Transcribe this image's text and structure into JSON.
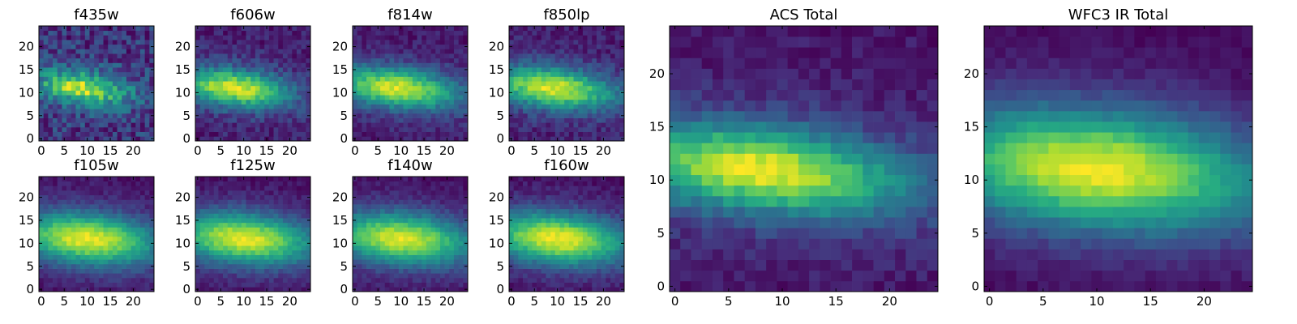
{
  "chart_data": [
    {
      "type": "heatmap",
      "title": "f435w",
      "xlabel": "",
      "ylabel": "",
      "xlim": [
        0,
        25
      ],
      "ylim": [
        0,
        25
      ],
      "xticks": [
        0,
        5,
        10,
        15,
        20
      ],
      "yticks": [
        0,
        5,
        10,
        15,
        20
      ],
      "grid": false,
      "colormap": "viridis",
      "peak_center": [
        9,
        11
      ],
      "spread": [
        5,
        2.2
      ],
      "tilt": -0.12,
      "noise": 0.42
    },
    {
      "type": "heatmap",
      "title": "f606w",
      "xlabel": "",
      "ylabel": "",
      "xlim": [
        0,
        25
      ],
      "ylim": [
        0,
        25
      ],
      "xticks": [
        0,
        5,
        10,
        15,
        20
      ],
      "yticks": [
        0,
        5,
        10,
        15,
        20
      ],
      "grid": false,
      "colormap": "viridis",
      "peak_center": [
        8,
        11
      ],
      "spread": [
        6,
        2.6
      ],
      "tilt": -0.1,
      "noise": 0.22
    },
    {
      "type": "heatmap",
      "title": "f814w",
      "xlabel": "",
      "ylabel": "",
      "xlim": [
        0,
        25
      ],
      "ylim": [
        0,
        25
      ],
      "xticks": [
        0,
        5,
        10,
        15,
        20
      ],
      "yticks": [
        0,
        5,
        10,
        15,
        20
      ],
      "grid": false,
      "colormap": "viridis",
      "peak_center": [
        9,
        11
      ],
      "spread": [
        7,
        2.8
      ],
      "tilt": -0.1,
      "noise": 0.18
    },
    {
      "type": "heatmap",
      "title": "f850lp",
      "xlabel": "",
      "ylabel": "",
      "xlim": [
        0,
        25
      ],
      "ylim": [
        0,
        25
      ],
      "xticks": [
        0,
        5,
        10,
        15,
        20
      ],
      "yticks": [
        0,
        5,
        10,
        15,
        20
      ],
      "grid": false,
      "colormap": "viridis",
      "peak_center": [
        9,
        11
      ],
      "spread": [
        7,
        2.8
      ],
      "tilt": -0.1,
      "noise": 0.2
    },
    {
      "type": "heatmap",
      "title": "f105w",
      "xlabel": "",
      "ylabel": "",
      "xlim": [
        0,
        25
      ],
      "ylim": [
        0,
        25
      ],
      "xticks": [
        0,
        5,
        10,
        15,
        20
      ],
      "yticks": [
        0,
        5,
        10,
        15,
        20
      ],
      "grid": false,
      "colormap": "viridis",
      "peak_center": [
        10,
        11
      ],
      "spread": [
        8,
        3.6
      ],
      "tilt": -0.08,
      "noise": 0.12
    },
    {
      "type": "heatmap",
      "title": "f125w",
      "xlabel": "",
      "ylabel": "",
      "xlim": [
        0,
        25
      ],
      "ylim": [
        0,
        25
      ],
      "xticks": [
        0,
        5,
        10,
        15,
        20
      ],
      "yticks": [
        0,
        5,
        10,
        15,
        20
      ],
      "grid": false,
      "colormap": "viridis",
      "peak_center": [
        10,
        11
      ],
      "spread": [
        8,
        3.6
      ],
      "tilt": -0.08,
      "noise": 0.12
    },
    {
      "type": "heatmap",
      "title": "f140w",
      "xlabel": "",
      "ylabel": "",
      "xlim": [
        0,
        25
      ],
      "ylim": [
        0,
        25
      ],
      "xticks": [
        0,
        5,
        10,
        15,
        20
      ],
      "yticks": [
        0,
        5,
        10,
        15,
        20
      ],
      "grid": false,
      "colormap": "viridis",
      "peak_center": [
        10,
        11
      ],
      "spread": [
        8,
        3.6
      ],
      "tilt": -0.08,
      "noise": 0.12
    },
    {
      "type": "heatmap",
      "title": "f160w",
      "xlabel": "",
      "ylabel": "",
      "xlim": [
        0,
        25
      ],
      "ylim": [
        0,
        25
      ],
      "xticks": [
        0,
        5,
        10,
        15,
        20
      ],
      "yticks": [
        0,
        5,
        10,
        15,
        20
      ],
      "grid": false,
      "colormap": "viridis",
      "peak_center": [
        10,
        11
      ],
      "spread": [
        8,
        3.6
      ],
      "tilt": -0.08,
      "noise": 0.12
    },
    {
      "type": "heatmap",
      "title": "ACS Total",
      "xlabel": "",
      "ylabel": "",
      "xlim": [
        0,
        25
      ],
      "ylim": [
        0,
        25
      ],
      "xticks": [
        0,
        5,
        10,
        15,
        20
      ],
      "yticks": [
        0,
        5,
        10,
        15,
        20
      ],
      "grid": false,
      "colormap": "viridis",
      "peak_center": [
        8,
        11
      ],
      "spread": [
        7,
        2.6
      ],
      "tilt": -0.1,
      "noise": 0.14
    },
    {
      "type": "heatmap",
      "title": "WFC3 IR Total",
      "xlabel": "",
      "ylabel": "",
      "xlim": [
        0,
        25
      ],
      "ylim": [
        0,
        25
      ],
      "xticks": [
        0,
        5,
        10,
        15,
        20
      ],
      "yticks": [
        0,
        5,
        10,
        15,
        20
      ],
      "grid": false,
      "colormap": "viridis",
      "peak_center": [
        10,
        11
      ],
      "spread": [
        8,
        3.6
      ],
      "tilt": -0.08,
      "noise": 0.08
    }
  ]
}
